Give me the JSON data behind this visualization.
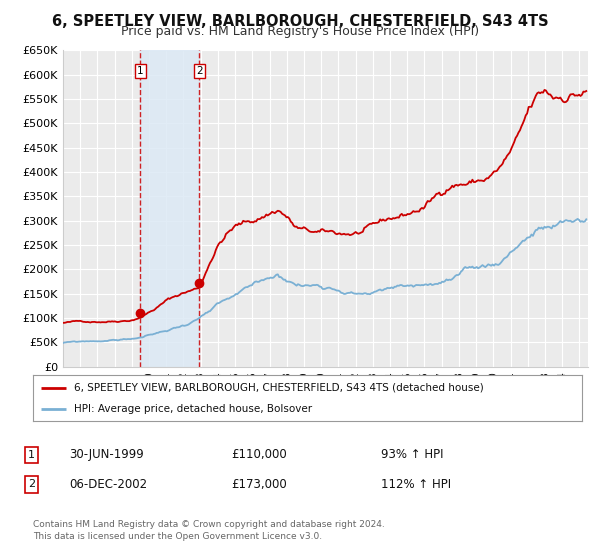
{
  "title": "6, SPEETLEY VIEW, BARLBOROUGH, CHESTERFIELD, S43 4TS",
  "subtitle": "Price paid vs. HM Land Registry's House Price Index (HPI)",
  "title_fontsize": 10.5,
  "subtitle_fontsize": 9,
  "ylim": [
    0,
    650000
  ],
  "yticks": [
    0,
    50000,
    100000,
    150000,
    200000,
    250000,
    300000,
    350000,
    400000,
    450000,
    500000,
    550000,
    600000,
    650000
  ],
  "ytick_labels": [
    "£0",
    "£50K",
    "£100K",
    "£150K",
    "£200K",
    "£250K",
    "£300K",
    "£350K",
    "£400K",
    "£450K",
    "£500K",
    "£550K",
    "£600K",
    "£650K"
  ],
  "xlim_start": 1995.0,
  "xlim_end": 2025.5,
  "background_color": "#ffffff",
  "plot_bg_color": "#ebebeb",
  "grid_color": "#ffffff",
  "transaction1_date": 1999.496,
  "transaction1_price": 110000,
  "transaction2_date": 2002.922,
  "transaction2_price": 173000,
  "property_line_color": "#cc0000",
  "hpi_line_color": "#7ab0d4",
  "legend_label_property": "6, SPEETLEY VIEW, BARLBOROUGH, CHESTERFIELD, S43 4TS (detached house)",
  "legend_label_hpi": "HPI: Average price, detached house, Bolsover",
  "annotation1_date_str": "30-JUN-1999",
  "annotation1_price_str": "£110,000",
  "annotation1_hpi_str": "93% ↑ HPI",
  "annotation2_date_str": "06-DEC-2002",
  "annotation2_price_str": "£173,000",
  "annotation2_hpi_str": "112% ↑ HPI",
  "footer_text": "Contains HM Land Registry data © Crown copyright and database right 2024.\nThis data is licensed under the Open Government Licence v3.0.",
  "shaded_region_color": "#dce9f5",
  "shaded_region_alpha": 0.85,
  "prop_waypoints": [
    [
      1995.0,
      90000
    ],
    [
      1996.0,
      92000
    ],
    [
      1997.0,
      94000
    ],
    [
      1998.0,
      97000
    ],
    [
      1999.0,
      102000
    ],
    [
      1999.496,
      110000
    ],
    [
      2000.0,
      120000
    ],
    [
      2001.0,
      145000
    ],
    [
      2002.0,
      162000
    ],
    [
      2002.922,
      173000
    ],
    [
      2003.5,
      230000
    ],
    [
      2004.0,
      270000
    ],
    [
      2004.5,
      295000
    ],
    [
      2005.0,
      310000
    ],
    [
      2006.0,
      320000
    ],
    [
      2007.0,
      340000
    ],
    [
      2007.5,
      350000
    ],
    [
      2008.0,
      335000
    ],
    [
      2008.5,
      310000
    ],
    [
      2009.0,
      300000
    ],
    [
      2009.5,
      295000
    ],
    [
      2010.0,
      290000
    ],
    [
      2011.0,
      285000
    ],
    [
      2012.0,
      287000
    ],
    [
      2013.0,
      292000
    ],
    [
      2014.0,
      305000
    ],
    [
      2015.0,
      315000
    ],
    [
      2016.0,
      330000
    ],
    [
      2017.0,
      360000
    ],
    [
      2017.5,
      380000
    ],
    [
      2018.0,
      385000
    ],
    [
      2019.0,
      390000
    ],
    [
      2019.5,
      395000
    ],
    [
      2020.0,
      405000
    ],
    [
      2020.5,
      420000
    ],
    [
      2021.0,
      445000
    ],
    [
      2021.5,
      470000
    ],
    [
      2022.0,
      510000
    ],
    [
      2022.5,
      535000
    ],
    [
      2023.0,
      545000
    ],
    [
      2023.5,
      535000
    ],
    [
      2024.0,
      540000
    ],
    [
      2024.5,
      550000
    ],
    [
      2025.2,
      555000
    ]
  ],
  "hpi_waypoints": [
    [
      1995.0,
      49000
    ],
    [
      1996.0,
      50500
    ],
    [
      1997.0,
      52000
    ],
    [
      1998.0,
      54000
    ],
    [
      1999.0,
      57000
    ],
    [
      2000.0,
      63000
    ],
    [
      2001.0,
      72000
    ],
    [
      2002.0,
      83000
    ],
    [
      2003.0,
      100000
    ],
    [
      2004.0,
      118000
    ],
    [
      2005.0,
      130000
    ],
    [
      2006.0,
      142000
    ],
    [
      2007.0,
      158000
    ],
    [
      2007.5,
      163000
    ],
    [
      2008.0,
      158000
    ],
    [
      2008.5,
      150000
    ],
    [
      2009.0,
      147000
    ],
    [
      2009.5,
      148000
    ],
    [
      2010.0,
      150000
    ],
    [
      2011.0,
      150000
    ],
    [
      2012.0,
      145000
    ],
    [
      2013.0,
      148000
    ],
    [
      2014.0,
      152000
    ],
    [
      2015.0,
      157000
    ],
    [
      2016.0,
      160000
    ],
    [
      2017.0,
      165000
    ],
    [
      2018.0,
      170000
    ],
    [
      2019.0,
      175000
    ],
    [
      2020.0,
      182000
    ],
    [
      2020.5,
      192000
    ],
    [
      2021.0,
      210000
    ],
    [
      2021.5,
      228000
    ],
    [
      2022.0,
      242000
    ],
    [
      2022.5,
      252000
    ],
    [
      2023.0,
      255000
    ],
    [
      2023.5,
      252000
    ],
    [
      2024.0,
      254000
    ],
    [
      2024.5,
      257000
    ],
    [
      2025.2,
      260000
    ]
  ]
}
